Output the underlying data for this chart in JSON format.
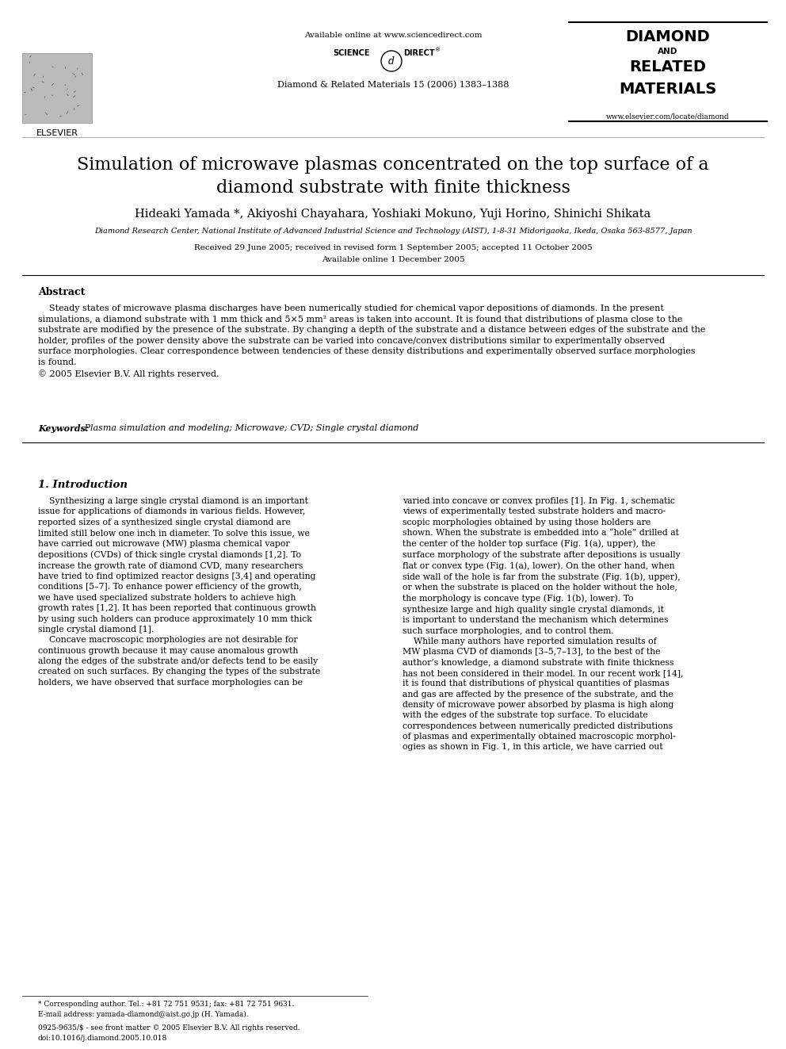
{
  "title": "Simulation of microwave plasmas concentrated on the top surface of a\ndiamond substrate with finite thickness",
  "authors": "Hideaki Yamada *, Akiyoshi Chayahara, Yoshiaki Mokuno, Yuji Horino, Shinichi Shikata",
  "affiliation": "Diamond Research Center, National Institute of Advanced Industrial Science and Technology (AIST), 1-8-31 Midorigaoka, Ikeda, Osaka 563-8577, Japan",
  "received": "Received 29 June 2005; received in revised form 1 September 2005; accepted 11 October 2005",
  "available": "Available online 1 December 2005",
  "journal_header_center": "Available online at www.sciencedirect.com",
  "journal_name_center": "Diamond & Related Materials 15 (2006) 1383–1388",
  "journal_url_right": "www.elsevier.com/locate/diamond",
  "publisher_left": "ELSEVIER",
  "abstract_title": "Abstract",
  "abstract_text": "    Steady states of microwave plasma discharges have been numerically studied for chemical vapor depositions of diamonds. In the present\nsimulations, a diamond substrate with 1 mm thick and 5×5 mm² areas is taken into account. It is found that distributions of plasma close to the\nsubstrate are modified by the presence of the substrate. By changing a depth of the substrate and a distance between edges of the substrate and the\nholder, profiles of the power density above the substrate can be varied into concave/convex distributions similar to experimentally observed\nsurface morphologies. Clear correspondence between tendencies of these density distributions and experimentally observed surface morphologies\nis found.\n© 2005 Elsevier B.V. All rights reserved.",
  "keywords_label": "Keywords:",
  "keywords_text": " Plasma simulation and modeling; Microwave; CVD; Single crystal diamond",
  "section1_title": "1. Introduction",
  "section1_left": "    Synthesizing a large single crystal diamond is an important\nissue for applications of diamonds in various fields. However,\nreported sizes of a synthesized single crystal diamond are\nlimited still below one inch in diameter. To solve this issue, we\nhave carried out microwave (MW) plasma chemical vapor\ndepositions (CVDs) of thick single crystal diamonds [1,2]. To\nincrease the growth rate of diamond CVD, many researchers\nhave tried to find optimized reactor designs [3,4] and operating\nconditions [5–7]. To enhance power efficiency of the growth,\nwe have used specialized substrate holders to achieve high\ngrowth rates [1,2]. It has been reported that continuous growth\nby using such holders can produce approximately 10 mm thick\nsingle crystal diamond [1].\n    Concave macroscopic morphologies are not desirable for\ncontinuous growth because it may cause anomalous growth\nalong the edges of the substrate and/or defects tend to be easily\ncreated on such surfaces. By changing the types of the substrate\nholders, we have observed that surface morphologies can be",
  "section1_right": "varied into concave or convex profiles [1]. In Fig. 1, schematic\nviews of experimentally tested substrate holders and macro-\nscopic morphologies obtained by using those holders are\nshown. When the substrate is embedded into a “hole” drilled at\nthe center of the holder top surface (Fig. 1(a), upper), the\nsurface morphology of the substrate after depositions is usually\nflat or convex type (Fig. 1(a), lower). On the other hand, when\nside wall of the hole is far from the substrate (Fig. 1(b), upper),\nor when the substrate is placed on the holder without the hole,\nthe morphology is concave type (Fig. 1(b), lower). To\nsynthesize large and high quality single crystal diamonds, it\nis important to understand the mechanism which determines\nsuch surface morphologies, and to control them.\n    While many authors have reported simulation results of\nMW plasma CVD of diamonds [3–5,7–13], to the best of the\nauthor’s knowledge, a diamond substrate with finite thickness\nhas not been considered in their model. In our recent work [14],\nit is found that distributions of physical quantities of plasmas\nand gas are affected by the presence of the substrate, and the\ndensity of microwave power absorbed by plasma is high along\nwith the edges of the substrate top surface. To elucidate\ncorrespondences between numerically predicted distributions\nof plasmas and experimentally obtained macroscopic morphol-\nogies as shown in Fig. 1, in this article, we have carried out",
  "footnote_star": "* Corresponding author. Tel.: +81 72 751 9531; fax: +81 72 751 9631.",
  "footnote_email": "E-mail address: yamada-diamond@aist.go.jp (H. Yamada).",
  "footnote_issn": "0925-9635/$ - see front matter © 2005 Elsevier B.V. All rights reserved.",
  "footnote_doi": "doi:10.1016/j.diamond.2005.10.018",
  "bg_color": "#ffffff",
  "text_color": "#000000",
  "link_color": "#0000cc"
}
